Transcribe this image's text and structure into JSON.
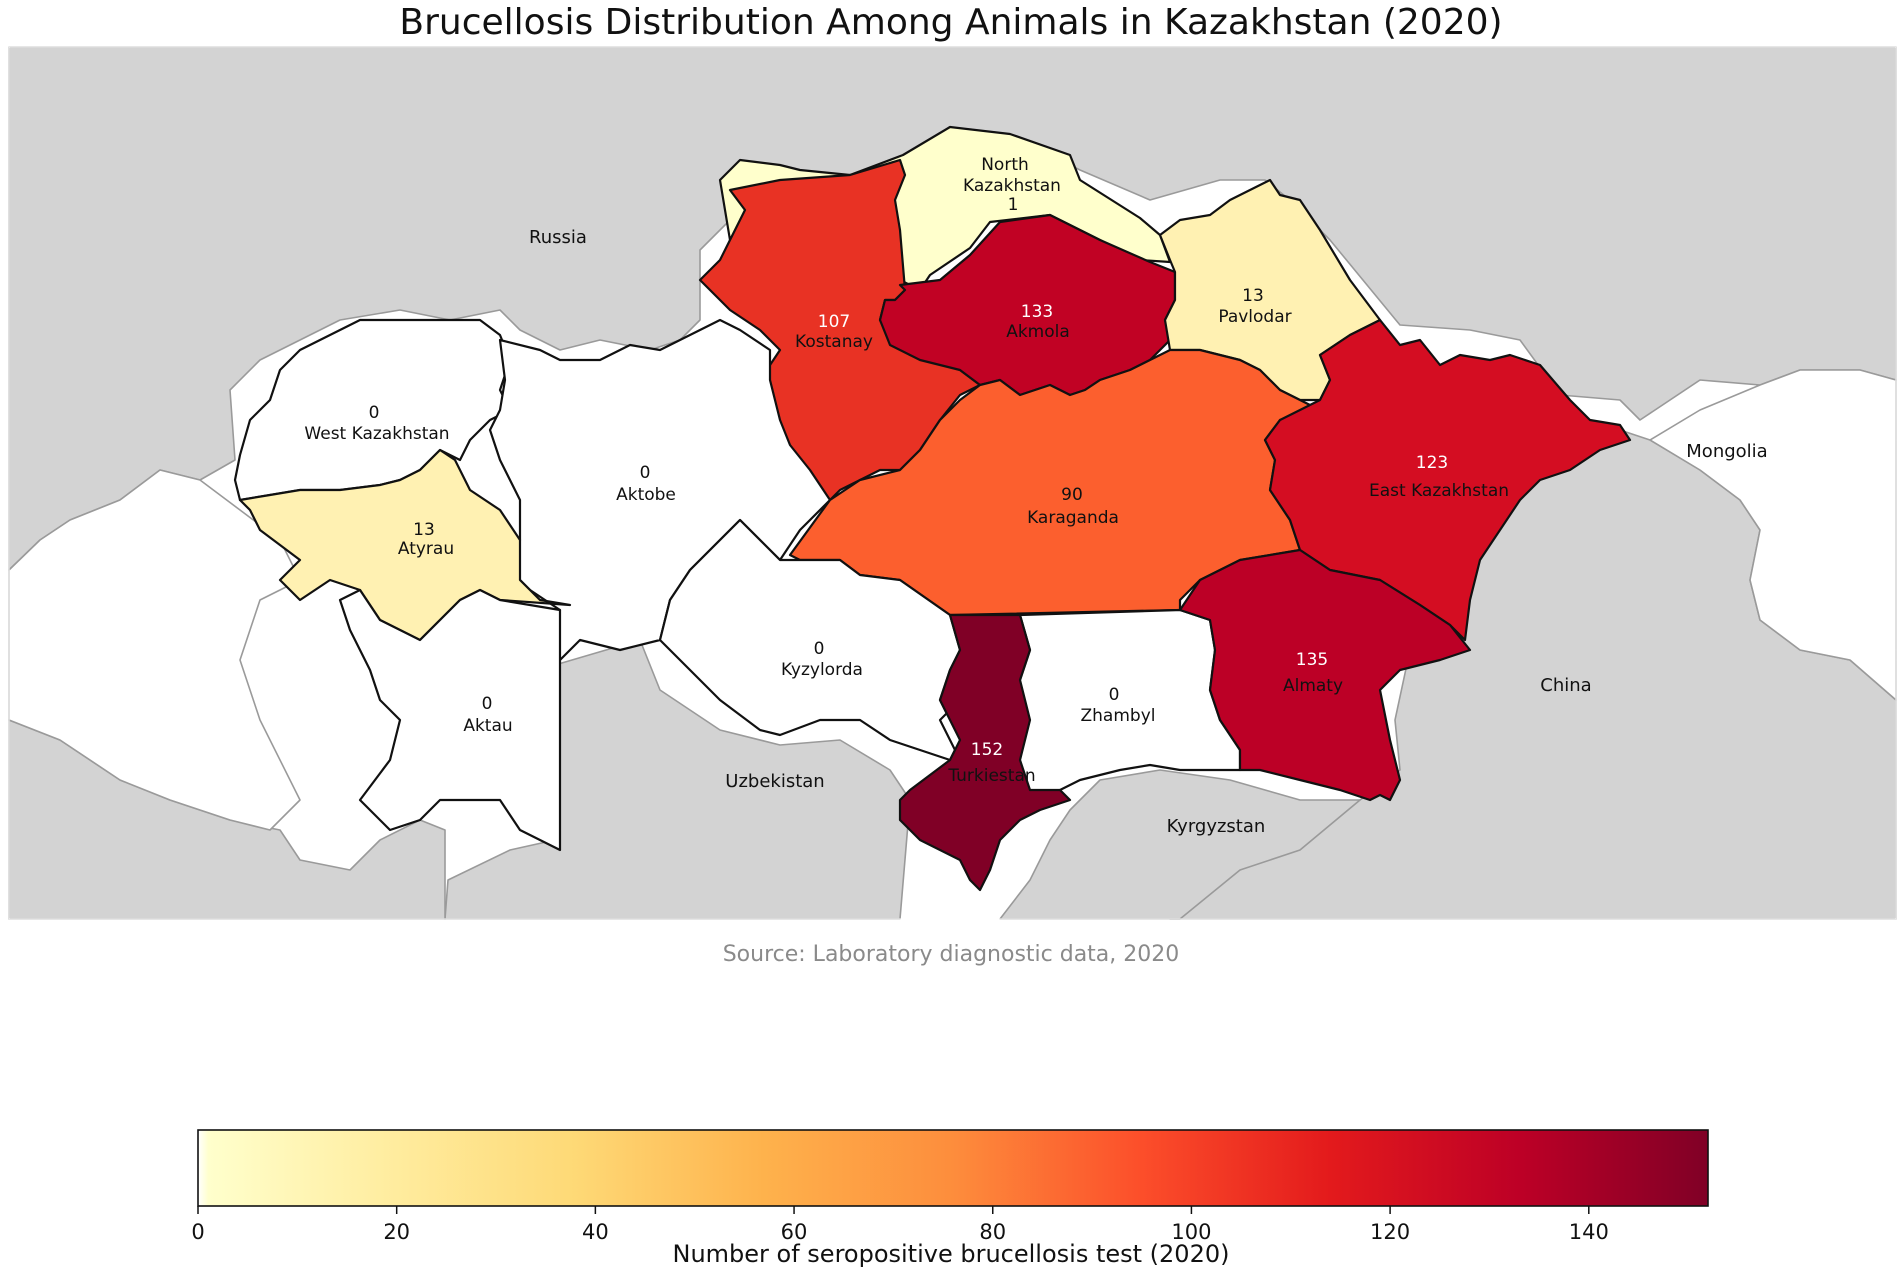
{
  "title": "Brucellosis Distribution Among Animals in Kazakhstan (2020)",
  "source": "Source: Laboratory diagnostic data, 2020",
  "colorbar": {
    "label": "Number of seropositive brucellosis test (2020)",
    "min": 0,
    "max": 152,
    "ticks": [
      "0",
      "20",
      "40",
      "60",
      "80",
      "100",
      "120",
      "140"
    ]
  },
  "regions": [
    {
      "name": "North Kazakhstan",
      "value": 1,
      "name_lines": [
        "North",
        "Kazakhstan"
      ],
      "color": "#ffffcc"
    },
    {
      "name": "Kostanay",
      "value": 107,
      "color": "#e83224"
    },
    {
      "name": "Akmola",
      "value": 133,
      "color": "#c10224"
    },
    {
      "name": "Pavlodar",
      "value": 13,
      "color": "#fff1b2"
    },
    {
      "name": "West Kazakhstan",
      "value": 0,
      "color": "#ffffff"
    },
    {
      "name": "Aktobe",
      "value": 0,
      "color": "#ffffff"
    },
    {
      "name": "Atyrau",
      "value": 13,
      "color": "#fff1b2"
    },
    {
      "name": "Karaganda",
      "value": 90,
      "color": "#fc5f2e"
    },
    {
      "name": "East Kazakhstan",
      "value": 123,
      "color": "#d40d22"
    },
    {
      "name": "Kyzylorda",
      "value": 0,
      "color": "#ffffff"
    },
    {
      "name": "Aktau",
      "value": 0,
      "color": "#ffffff"
    },
    {
      "name": "Zhambyl",
      "value": 0,
      "color": "#ffffff"
    },
    {
      "name": "Almaty",
      "value": 135,
      "color": "#bc0026"
    },
    {
      "name": "Turkiestan",
      "value": 152,
      "color": "#800026"
    }
  ],
  "countries": [
    "Russia",
    "Mongolia",
    "China",
    "Uzbekistan",
    "Kyrgyzstan"
  ]
}
